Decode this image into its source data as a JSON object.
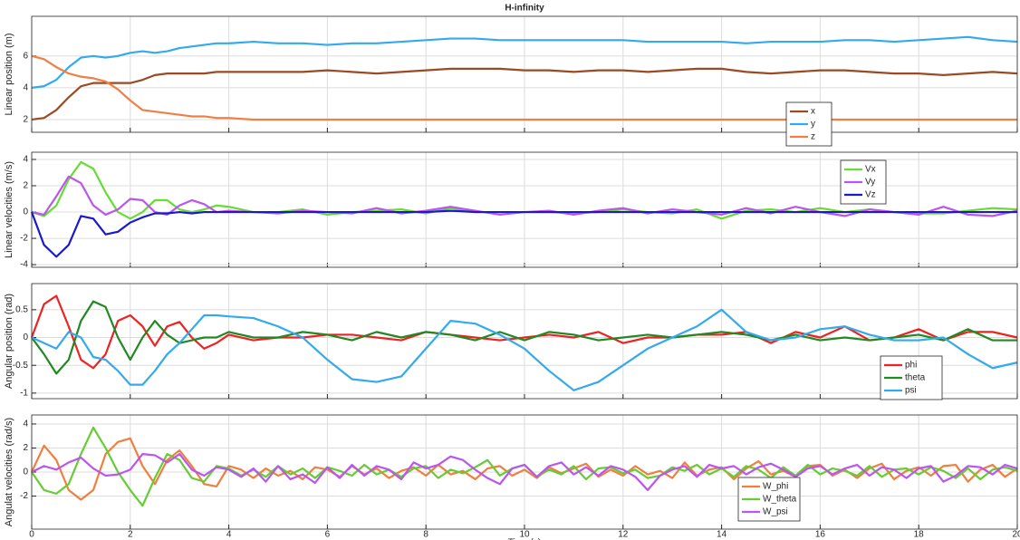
{
  "chart_data": [
    {
      "type": "line",
      "title": "H-infinity",
      "ylabel": "Linear position (m)",
      "x": [
        0,
        0.25,
        0.5,
        0.75,
        1,
        1.25,
        1.5,
        1.75,
        2,
        2.25,
        2.5,
        2.75,
        3,
        3.25,
        3.5,
        3.75,
        4,
        4.5,
        5,
        5.5,
        6,
        6.5,
        7,
        7.5,
        8,
        8.5,
        9,
        9.5,
        10,
        10.5,
        11,
        11.5,
        12,
        12.5,
        13,
        13.5,
        14,
        14.5,
        15,
        15.5,
        16,
        16.5,
        17,
        17.5,
        18,
        18.5,
        19,
        19.5,
        20
      ],
      "series": [
        {
          "name": "x",
          "color": "#9c4a24",
          "values": [
            2,
            2.1,
            2.6,
            3.4,
            4.1,
            4.3,
            4.3,
            4.3,
            4.3,
            4.5,
            4.8,
            4.9,
            4.9,
            4.9,
            4.9,
            5.0,
            5.0,
            5.0,
            5.0,
            5.0,
            5.1,
            5.0,
            4.9,
            5.0,
            5.1,
            5.2,
            5.2,
            5.2,
            5.1,
            5.1,
            5.0,
            5.1,
            5.1,
            5.0,
            5.1,
            5.2,
            5.2,
            5.0,
            4.9,
            5.0,
            5.1,
            5.1,
            5.0,
            4.9,
            4.9,
            4.8,
            4.9,
            5.0,
            4.9
          ]
        },
        {
          "name": "y",
          "color": "#33aaee",
          "values": [
            4.0,
            4.1,
            4.5,
            5.3,
            5.9,
            6.0,
            5.9,
            6.0,
            6.2,
            6.3,
            6.2,
            6.3,
            6.5,
            6.6,
            6.7,
            6.8,
            6.8,
            6.9,
            6.8,
            6.8,
            6.7,
            6.8,
            6.8,
            6.9,
            7.0,
            7.1,
            7.1,
            7.0,
            7.0,
            7.0,
            7.0,
            7.0,
            7.0,
            6.9,
            6.9,
            6.9,
            6.9,
            6.8,
            6.9,
            6.9,
            6.9,
            7.0,
            7.0,
            6.9,
            7.0,
            7.1,
            7.2,
            7.0,
            6.9
          ]
        },
        {
          "name": "z",
          "color": "#f07f45",
          "values": [
            6.0,
            5.8,
            5.3,
            4.9,
            4.7,
            4.6,
            4.4,
            3.9,
            3.2,
            2.6,
            2.5,
            2.4,
            2.3,
            2.2,
            2.2,
            2.1,
            2.1,
            2.0,
            2.0,
            2.0,
            2.0,
            2.0,
            2.0,
            2.0,
            2.0,
            2.0,
            2.0,
            2.0,
            2.0,
            2.0,
            2.0,
            2.0,
            2.0,
            2.0,
            2.0,
            2.0,
            2.0,
            2.0,
            2.0,
            2.0,
            2.0,
            2.0,
            2.0,
            2.0,
            2.0,
            2.0,
            2.0,
            2.0,
            2.0
          ]
        }
      ],
      "xlim": [
        0,
        20
      ],
      "xticks": [
        0,
        2,
        4,
        6,
        8,
        10,
        12,
        14,
        16,
        18,
        20
      ],
      "ylim": [
        1.2,
        8.5
      ],
      "yticks": [
        2,
        4,
        6
      ],
      "grid": true,
      "legend": "east"
    },
    {
      "type": "line",
      "ylabel": "Linear velocities (m/s)",
      "x": [
        0,
        0.25,
        0.5,
        0.75,
        1,
        1.25,
        1.5,
        1.75,
        2,
        2.25,
        2.5,
        2.75,
        3,
        3.25,
        3.5,
        3.75,
        4,
        4.5,
        5,
        5.5,
        6,
        6.5,
        7,
        7.5,
        8,
        8.5,
        9,
        9.5,
        10,
        10.5,
        11,
        11.5,
        12,
        12.5,
        13,
        13.5,
        14,
        14.5,
        15,
        15.5,
        16,
        16.5,
        17,
        17.5,
        18,
        18.5,
        19,
        19.5,
        20
      ],
      "series": [
        {
          "name": "Vx",
          "color": "#66dd33",
          "values": [
            0,
            -0.3,
            0.5,
            2.5,
            3.8,
            3.3,
            1.5,
            0,
            -0.5,
            0,
            0.9,
            0.9,
            0.2,
            0,
            0.2,
            0.5,
            0.4,
            0,
            0,
            0.2,
            -0.2,
            0,
            0.1,
            0.2,
            -0.1,
            0.3,
            0,
            0,
            0,
            0,
            -0.1,
            0,
            0.2,
            0,
            -0.1,
            0.2,
            -0.5,
            0.1,
            0.2,
            0,
            0.3,
            0,
            0.2,
            0,
            -0.1,
            -0.1,
            0.1,
            0.3,
            0.2
          ]
        },
        {
          "name": "Vy",
          "color": "#bb55ee",
          "values": [
            0,
            -0.2,
            1.2,
            2.7,
            2.2,
            0.5,
            -0.2,
            0.2,
            1.0,
            0.9,
            0,
            -0.2,
            0.5,
            0.9,
            0.6,
            0,
            0.1,
            0,
            -0.1,
            0.1,
            0,
            -0.1,
            0.3,
            -0.1,
            0.1,
            0.4,
            0.1,
            -0.2,
            0,
            0.1,
            -0.2,
            0.1,
            0.3,
            -0.1,
            0.2,
            0,
            -0.2,
            0.3,
            -0.1,
            0.4,
            0,
            -0.3,
            0.2,
            0,
            -0.2,
            0.4,
            -0.2,
            -0.3,
            0.1
          ]
        },
        {
          "name": "Vz",
          "color": "#1a1acc",
          "values": [
            0,
            -2.5,
            -3.4,
            -2.5,
            -0.3,
            -0.5,
            -1.7,
            -1.5,
            -0.8,
            -0.4,
            -0.1,
            -0.1,
            0,
            -0.1,
            0,
            0,
            0,
            0,
            0,
            0,
            0,
            0,
            0,
            0,
            0,
            0.1,
            0,
            0,
            0,
            0,
            0,
            0,
            0,
            0,
            0,
            0,
            0,
            0,
            0,
            0,
            0,
            0,
            0,
            0,
            0,
            0,
            0,
            0,
            0
          ]
        }
      ],
      "xlim": [
        0,
        20
      ],
      "xticks": [
        0,
        2,
        4,
        6,
        8,
        10,
        12,
        14,
        16,
        18,
        20
      ],
      "ylim": [
        -4.2,
        4.55
      ],
      "yticks": [
        -4,
        -2,
        0,
        2,
        4
      ],
      "grid": true,
      "legend": "northeast"
    },
    {
      "type": "line",
      "ylabel": "Angular position (rad)",
      "x": [
        0,
        0.25,
        0.5,
        0.75,
        1,
        1.25,
        1.5,
        1.75,
        2,
        2.25,
        2.5,
        2.75,
        3,
        3.25,
        3.5,
        3.75,
        4,
        4.5,
        5,
        5.5,
        6,
        6.5,
        7,
        7.5,
        8,
        8.5,
        9,
        9.5,
        10,
        10.5,
        11,
        11.5,
        12,
        12.5,
        13,
        13.5,
        14,
        14.5,
        15,
        15.5,
        16,
        16.5,
        17,
        17.5,
        18,
        18.5,
        19,
        19.5,
        20
      ],
      "series": [
        {
          "name": "phi",
          "color": "#ee2222",
          "values": [
            0,
            0.6,
            0.75,
            0.2,
            -0.4,
            -0.55,
            -0.3,
            0.3,
            0.4,
            0.2,
            -0.15,
            0.2,
            0.28,
            0,
            -0.2,
            -0.1,
            0.05,
            -0.05,
            0,
            0,
            0.05,
            0.05,
            0,
            -0.05,
            0.1,
            0.05,
            0,
            -0.05,
            0,
            0.05,
            0,
            0.1,
            -0.1,
            0,
            0,
            0.05,
            0.05,
            0.1,
            -0.1,
            0.1,
            0,
            0.2,
            -0.05,
            0,
            0.15,
            -0.05,
            0.1,
            0.1,
            0
          ]
        },
        {
          "name": "theta",
          "color": "#228822",
          "values": [
            0,
            -0.3,
            -0.65,
            -0.4,
            0.3,
            0.65,
            0.55,
            0,
            -0.4,
            0,
            0.3,
            0.05,
            -0.1,
            -0.05,
            0,
            0,
            0.1,
            0,
            0,
            0.1,
            0.05,
            -0.05,
            0.1,
            0,
            0.1,
            0.05,
            -0.05,
            0.1,
            -0.05,
            0.1,
            0.05,
            -0.05,
            0,
            0.05,
            0,
            0.05,
            0.1,
            0.05,
            -0.05,
            0.05,
            -0.05,
            0,
            -0.05,
            0,
            0.05,
            -0.05,
            0.15,
            -0.05,
            -0.05
          ]
        },
        {
          "name": "psi",
          "color": "#33aaee",
          "values": [
            0,
            -0.1,
            -0.2,
            0.1,
            0,
            -0.35,
            -0.4,
            -0.6,
            -0.85,
            -0.85,
            -0.6,
            -0.3,
            -0.1,
            0.15,
            0.4,
            0.4,
            0.38,
            0.35,
            0.2,
            0,
            -0.4,
            -0.75,
            -0.8,
            -0.7,
            -0.2,
            0.3,
            0.25,
            0.05,
            -0.2,
            -0.6,
            -0.95,
            -0.8,
            -0.5,
            -0.2,
            0,
            0.2,
            0.5,
            0.1,
            -0.05,
            0,
            0.15,
            0.2,
            0.05,
            -0.05,
            -0.05,
            0,
            -0.3,
            -0.55,
            -0.45
          ]
        }
      ],
      "xlim": [
        0,
        20
      ],
      "xticks": [
        0,
        2,
        4,
        6,
        8,
        10,
        12,
        14,
        16,
        18,
        20
      ],
      "ylim": [
        -1.1,
        0.97
      ],
      "yticks": [
        -1,
        -0.5,
        0,
        0.5
      ],
      "grid": true,
      "legend": "southeast"
    },
    {
      "type": "line",
      "ylabel": "Angulat velocities (rad/s)",
      "xlabel": "Time (s)",
      "x": [
        0,
        0.25,
        0.5,
        0.75,
        1,
        1.25,
        1.5,
        1.75,
        2,
        2.25,
        2.5,
        2.75,
        3,
        3.25,
        3.5,
        3.75,
        4,
        4.25,
        4.5,
        4.75,
        5,
        5.25,
        5.5,
        5.75,
        6,
        6.25,
        6.5,
        6.75,
        7,
        7.25,
        7.5,
        7.75,
        8,
        8.25,
        8.5,
        8.75,
        9,
        9.25,
        9.5,
        9.75,
        10,
        10.25,
        10.5,
        10.75,
        11,
        11.25,
        11.5,
        11.75,
        12,
        12.25,
        12.5,
        12.75,
        13,
        13.25,
        13.5,
        13.75,
        14,
        14.25,
        14.5,
        14.75,
        15,
        15.25,
        15.5,
        15.75,
        16,
        16.25,
        16.5,
        16.75,
        17,
        17.25,
        17.5,
        17.75,
        18,
        18.25,
        18.5,
        18.75,
        19,
        19.25,
        19.5,
        19.75,
        20
      ],
      "series": [
        {
          "name": "W_phi",
          "color": "#f07f3f",
          "values": [
            0,
            2.2,
            1,
            -1.5,
            -2.3,
            -1.5,
            1.5,
            2.5,
            2.8,
            0.5,
            -1,
            1,
            1.8,
            0.5,
            -1,
            -1.2,
            0.5,
            0.2,
            -0.5,
            0.3,
            -0.3,
            0.1,
            -0.6,
            0.4,
            0.2,
            -0.4,
            0.5,
            -0.2,
            0.3,
            -0.5,
            0.1,
            0.4,
            -0.3,
            0.6,
            -0.2,
            0.1,
            -0.6,
            0.3,
            0.5,
            -0.3,
            0.2,
            -0.5,
            0.4,
            -0.1,
            0.3,
            0.7,
            -0.4,
            0.2,
            -0.3,
            0.5,
            -0.2,
            0.1,
            -0.5,
            0.8,
            -0.3,
            0.2,
            0.4,
            -0.6,
            0.3,
            0.9,
            -0.2,
            0.1,
            -0.4,
            0.5,
            0.6,
            -0.3,
            0.2,
            -0.5,
            0.3,
            0.7,
            -0.6,
            0.1,
            0.4,
            -0.3,
            0.5,
            0.6,
            -0.8,
            0.2,
            0.6,
            -0.4,
            0.3
          ]
        },
        {
          "name": "W_theta",
          "color": "#66cc33",
          "values": [
            0,
            -1.5,
            -1.8,
            -1,
            1.5,
            3.7,
            2,
            0,
            -1.5,
            -2.8,
            -0.5,
            1.5,
            1,
            -0.5,
            -0.8,
            0.5,
            0.3,
            -0.3,
            0.2,
            -0.4,
            0.5,
            -0.2,
            0.3,
            -0.5,
            0.4,
            0.1,
            -0.3,
            0.6,
            -0.2,
            0.2,
            -0.4,
            0.3,
            0.5,
            -0.5,
            0.2,
            -0.1,
            0.4,
            1,
            -0.3,
            0.3,
            0.6,
            -0.4,
            0.2,
            -0.2,
            0.5,
            -0.6,
            0.3,
            0.4,
            -0.1,
            0.2,
            -0.5,
            -0.3,
            0.4,
            0.1,
            0.6,
            -0.2,
            0.3,
            -0.4,
            0.5,
            0.2,
            -0.5,
            0.4,
            -0.3,
            0.6,
            -0.2,
            0.3,
            0.1,
            -0.3,
            0.5,
            -0.4,
            0.2,
            0.3,
            -0.2,
            0.4,
            0.1,
            -0.5,
            0.3,
            -0.6,
            0.2,
            0.4,
            0.1
          ]
        },
        {
          "name": "W_psi",
          "color": "#bb55ee",
          "values": [
            0,
            0.5,
            0.2,
            0.8,
            1.2,
            0.3,
            -0.3,
            -0.2,
            0.2,
            1.5,
            1.4,
            0.8,
            1.5,
            0.2,
            -0.3,
            0.4,
            0.2,
            -0.4,
            0.3,
            -0.8,
            0.5,
            -0.6,
            -0.2,
            -0.9,
            0.4,
            -0.5,
            0.6,
            -0.3,
            0.5,
            0.2,
            -0.6,
            0.8,
            0.3,
            0.6,
            1.3,
            1,
            0.2,
            -0.5,
            -1,
            0.3,
            0.6,
            -0.4,
            0.5,
            0.8,
            -0.2,
            0.4,
            -0.3,
            0.5,
            0.2,
            -0.4,
            -1.5,
            -0.3,
            0.2,
            0.5,
            -0.4,
            0.6,
            0.3,
            0.5,
            -0.2,
            0.4,
            0.7,
            0.2,
            -0.4,
            0.3,
            0.5,
            -0.2,
            0.3,
            0.6,
            -0.3,
            0.4,
            0.2,
            -0.5,
            0.3,
            0.5,
            -0.8,
            -0.3,
            0.5,
            0.4,
            -0.2,
            0.6,
            0.3
          ]
        }
      ],
      "xlim": [
        0,
        20
      ],
      "xticks": [
        0,
        2,
        4,
        6,
        8,
        10,
        12,
        14,
        16,
        18,
        20
      ],
      "ylim": [
        -4.75,
        4.75
      ],
      "yticks": [
        -2,
        0,
        2,
        4
      ],
      "grid": true,
      "legend": "south"
    }
  ]
}
